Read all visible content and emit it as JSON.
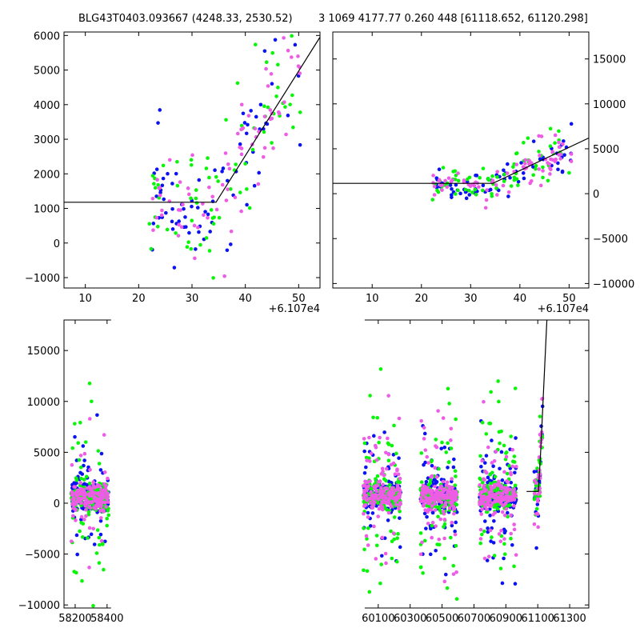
{
  "titles": {
    "left": "BLG43T0403.093667 (4248.33, 2530.52)",
    "right": "3 1069 4177.77 0.260 448 [61118.652, 61120.298]"
  },
  "colors": {
    "blue": "#0a13f0",
    "green": "#08f508",
    "magenta": "#ee5ce6",
    "line": "#000000"
  },
  "chart_data": [
    {
      "name": "zoom-left",
      "type": "scatter",
      "x_offset_label": "+6.107e4",
      "xlim": [
        6,
        54
      ],
      "ylim": [
        -1300,
        6100
      ],
      "xticks": [
        10,
        20,
        30,
        40,
        50
      ],
      "yticks": [
        -1000,
        0,
        1000,
        2000,
        3000,
        4000,
        5000,
        6000
      ],
      "model_line": [
        [
          6,
          1180
        ],
        [
          34.5,
          1180
        ],
        [
          54,
          5950
        ]
      ],
      "seed": 11
    },
    {
      "name": "zoom-right",
      "type": "scatter",
      "x_offset_label": "+6.107e4",
      "xlim": [
        2,
        54
      ],
      "ylim": [
        -10500,
        18000
      ],
      "xticks": [
        10,
        20,
        30,
        40,
        50
      ],
      "yticks": [
        -10000,
        -5000,
        0,
        5000,
        10000,
        15000
      ],
      "model_line": [
        [
          2,
          1150
        ],
        [
          34.5,
          1150
        ],
        [
          54,
          6200
        ]
      ],
      "seed": 23
    },
    {
      "name": "full-lightcurve",
      "type": "scatter",
      "xlim": [
        58130,
        61420
      ],
      "ylim": [
        -10300,
        18000
      ],
      "xticks": [
        58200,
        58400,
        60100,
        60300,
        60500,
        60700,
        60900,
        61100,
        61300
      ],
      "yticks": [
        -10000,
        -5000,
        0,
        5000,
        10000,
        15000
      ],
      "gap": [
        58400,
        59990
      ],
      "seasons": [
        [
          58175,
          58410
        ],
        [
          60005,
          60240
        ],
        [
          60365,
          60595
        ],
        [
          60735,
          60965
        ]
      ],
      "final_season": [
        61078,
        61130
      ],
      "model_line": [
        [
          61030,
          1150
        ],
        [
          61104,
          1150
        ],
        [
          61118,
          5000
        ],
        [
          61157,
          18000
        ]
      ],
      "seed": 37
    }
  ]
}
